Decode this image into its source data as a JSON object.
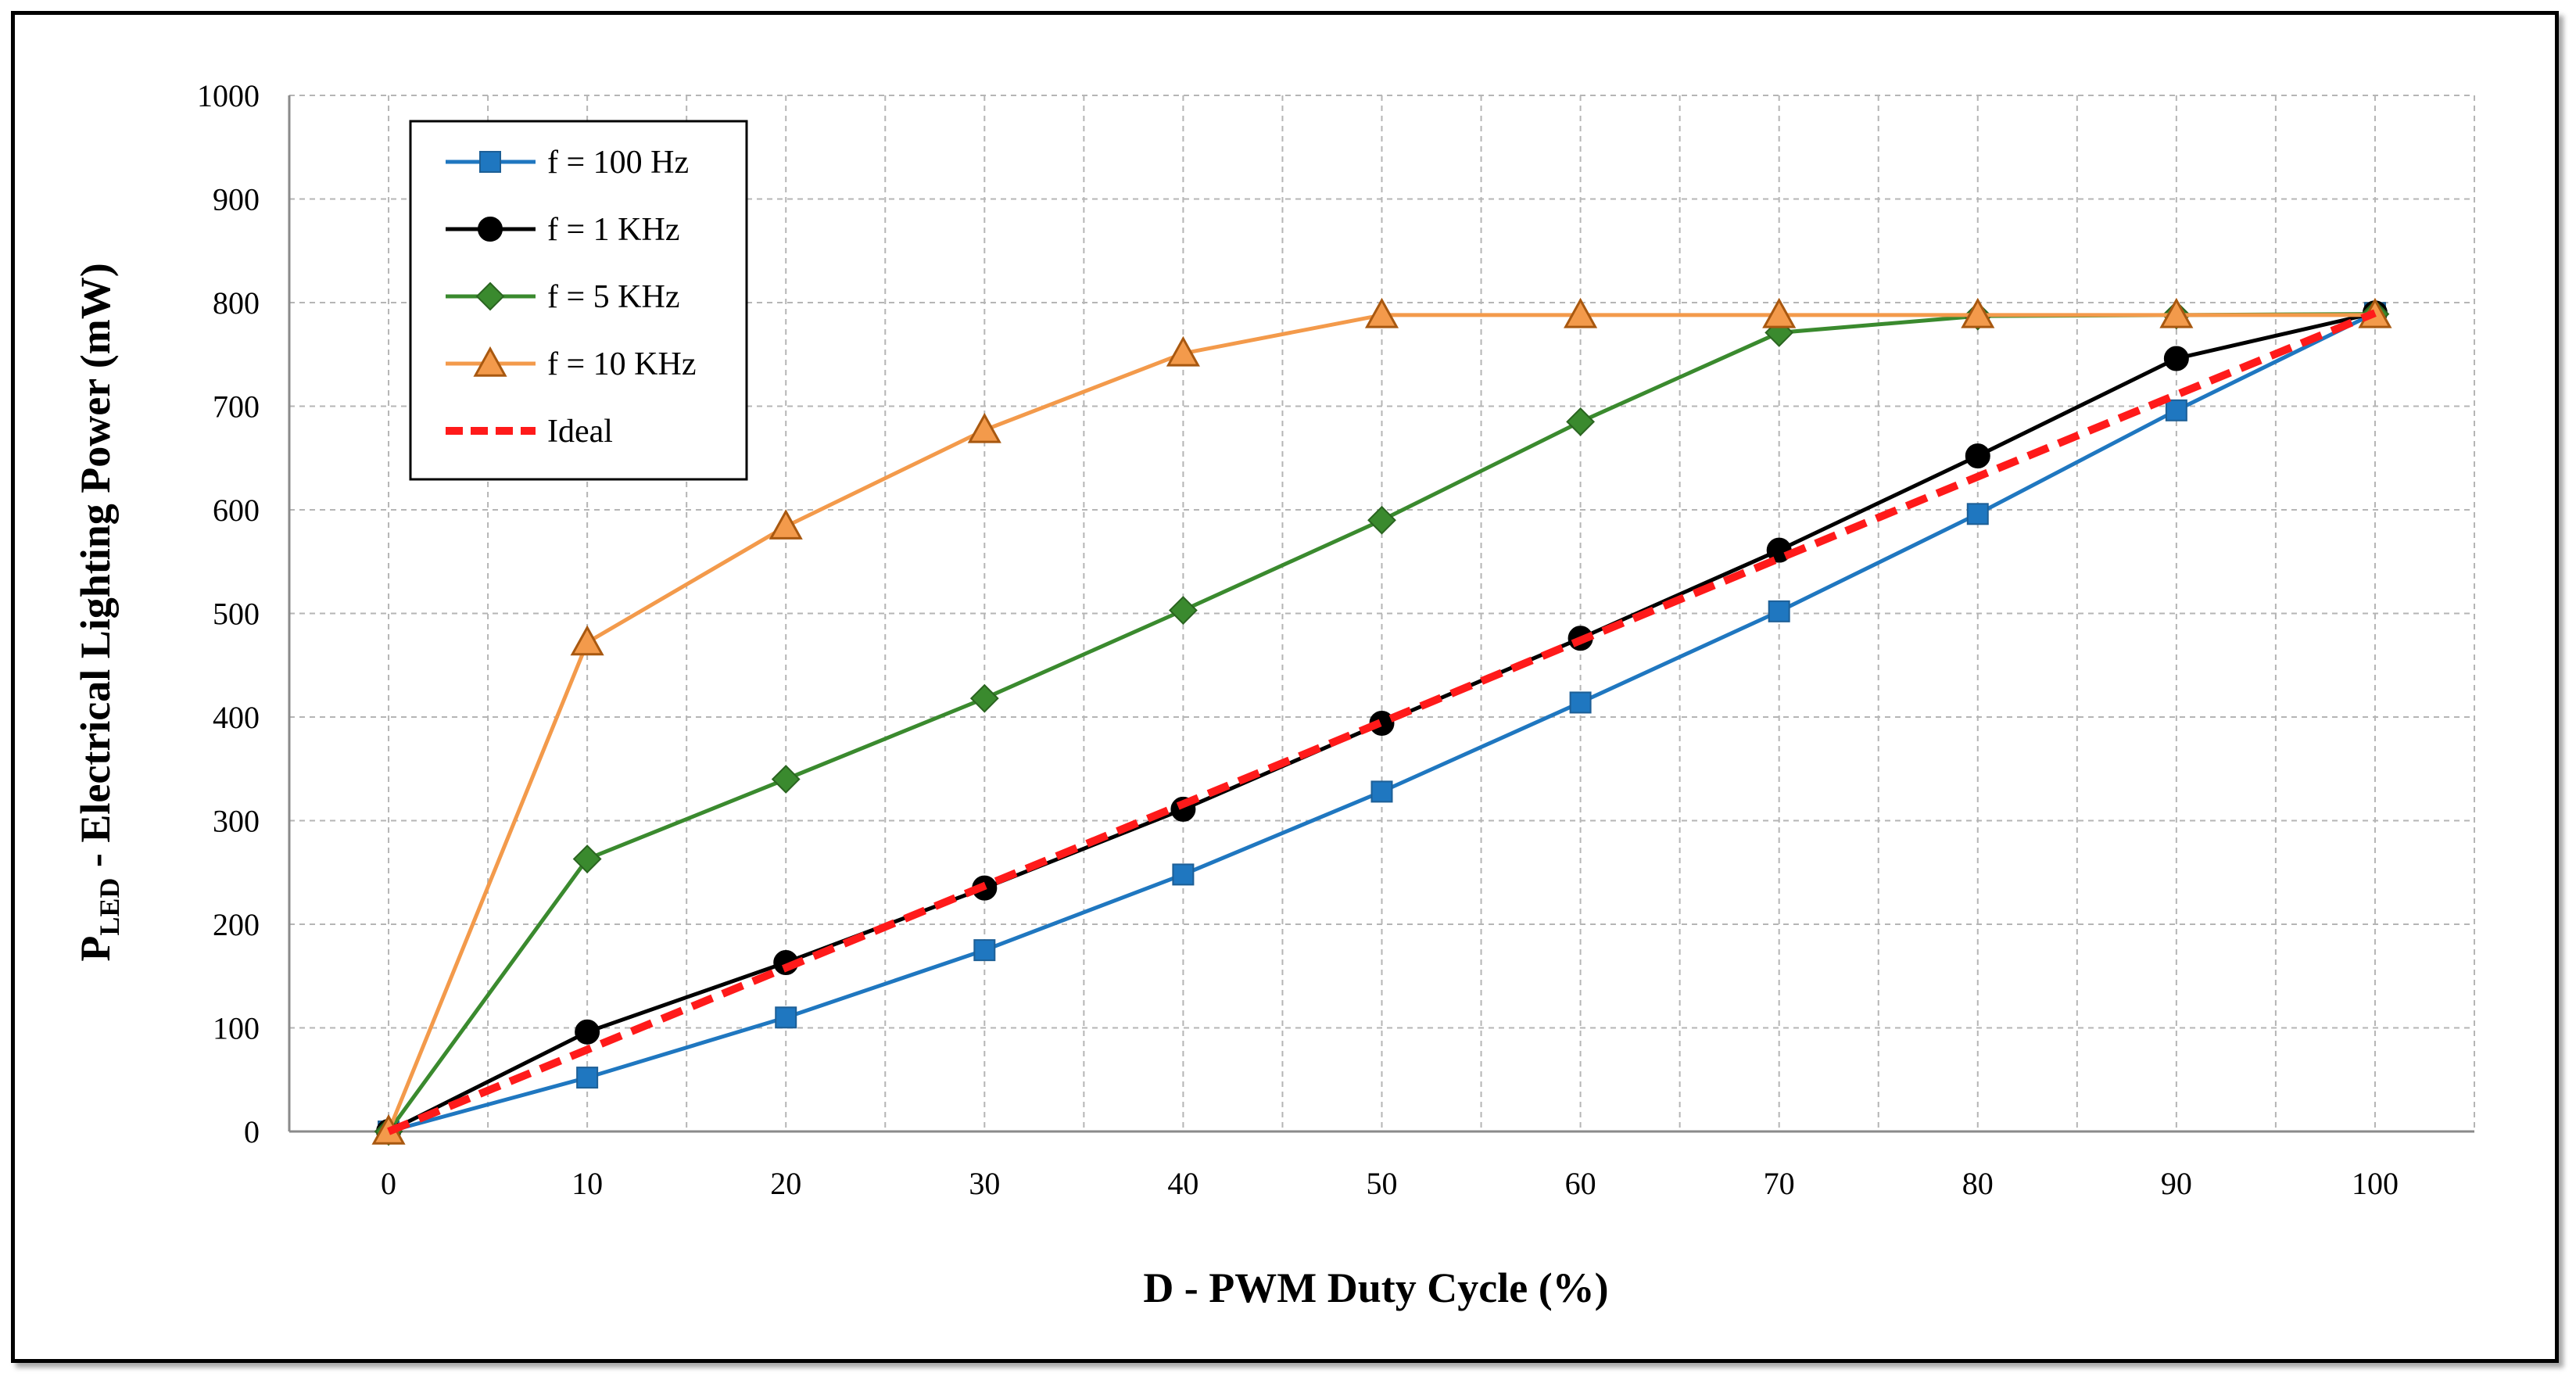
{
  "chart_data": {
    "type": "line",
    "title": "",
    "xlabel": "D - PWM Duty Cycle (%)",
    "ylabel": {
      "main": "P",
      "subscript": "LED",
      "rest": " - Electrical Lighting Power (mW)"
    },
    "xlim": [
      -5,
      105
    ],
    "ylim": [
      0,
      1000
    ],
    "x_ticks": [
      0,
      10,
      20,
      30,
      40,
      50,
      60,
      70,
      80,
      90,
      100
    ],
    "y_ticks": [
      0,
      100,
      200,
      300,
      400,
      500,
      600,
      700,
      800,
      900,
      1000
    ],
    "grid": true,
    "legend_position": "top-left",
    "x": [
      0,
      10,
      20,
      30,
      40,
      50,
      60,
      70,
      80,
      90,
      100
    ],
    "series": [
      {
        "name": "f = 100 Hz",
        "color": "#1F77C0",
        "marker": "square",
        "values": [
          0,
          52,
          110,
          175,
          248,
          328,
          414,
          502,
          596,
          696,
          790
        ]
      },
      {
        "name": "f = 1 KHz",
        "color": "#000000",
        "marker": "circle",
        "values": [
          0,
          96,
          163,
          235,
          311,
          394,
          476,
          561,
          652,
          746,
          790
        ]
      },
      {
        "name": "f = 5 KHz",
        "color": "#3A8A2E",
        "marker": "diamond",
        "values": [
          0,
          263,
          340,
          418,
          503,
          590,
          685,
          771,
          787,
          788,
          789
        ]
      },
      {
        "name": "f = 10 KHz",
        "color": "#F39A4B",
        "marker": "triangle",
        "values": [
          0,
          472,
          584,
          677,
          751,
          788,
          788,
          788,
          788,
          788,
          788
        ]
      },
      {
        "name": "Ideal",
        "color": "#FF1A1A",
        "marker": "none",
        "dashed": true,
        "values": [
          0,
          79,
          158,
          237,
          316,
          395,
          474,
          553,
          632,
          711,
          790
        ]
      }
    ]
  }
}
